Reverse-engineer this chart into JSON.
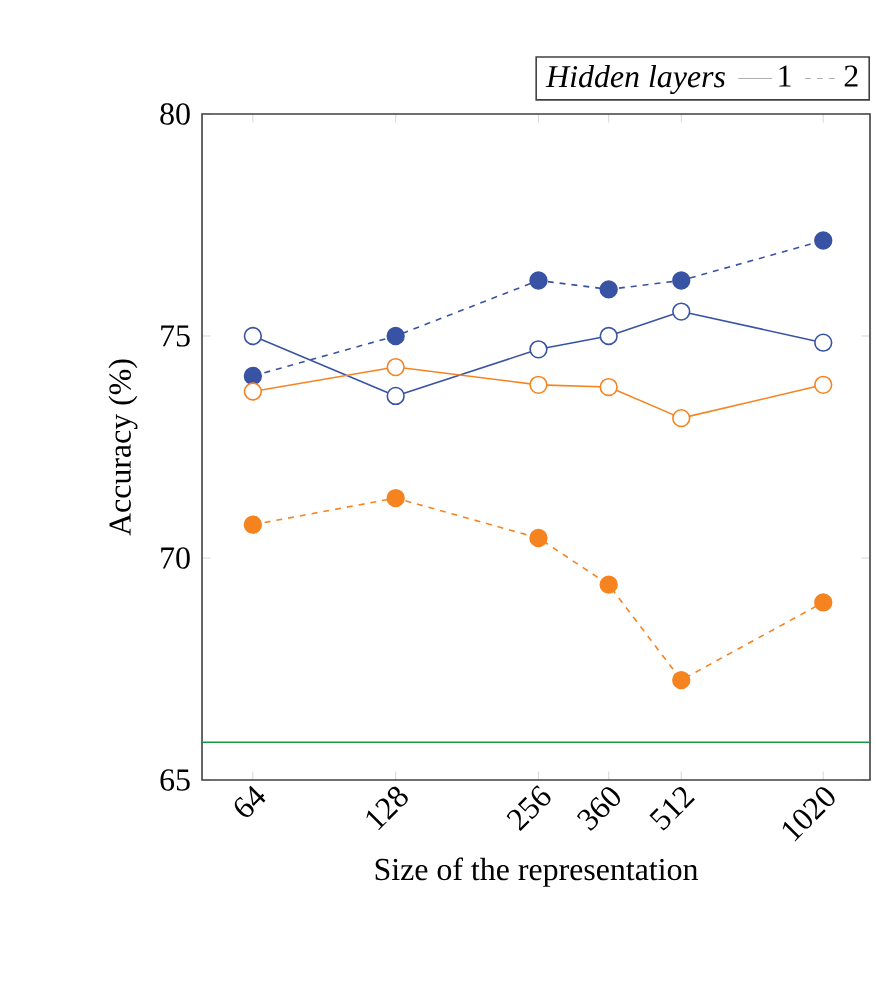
{
  "chart_data": {
    "type": "line",
    "xlabel": "Size of the representation",
    "ylabel": "Accuracy (%)",
    "legend_title": "Hidden layers",
    "x": [
      64,
      128,
      256,
      360,
      512,
      1020
    ],
    "series": [
      {
        "color": "#3953a4",
        "line_style": "solid",
        "values": [
          75.0,
          73.65,
          74.7,
          75.0,
          75.55,
          74.85
        ]
      },
      {
        "color": "#3953a4",
        "line_style": "dashed",
        "values": [
          74.1,
          75.0,
          76.25,
          76.05,
          76.25,
          77.15
        ]
      },
      {
        "color": "#f58420",
        "line_style": "solid",
        "values": [
          73.75,
          74.3,
          73.9,
          73.85,
          73.15,
          73.9
        ]
      },
      {
        "color": "#f58420",
        "line_style": "dashed",
        "values": [
          70.75,
          71.35,
          70.45,
          69.4,
          67.25,
          69.0
        ]
      },
      {
        "name": "1",
        "color": "#999999",
        "line_style": "solid",
        "values": [
          null,
          null,
          null,
          null,
          null,
          null
        ]
      },
      {
        "name": "2",
        "color": "#999999",
        "line_style": "dashed",
        "values": [
          null,
          null,
          null,
          null,
          null,
          null
        ]
      }
    ],
    "log": "x",
    "xlim": [
      50,
      1280
    ],
    "ylim": [
      65,
      80
    ],
    "xticks": [
      64,
      128,
      256,
      360,
      512,
      1020
    ],
    "yticks": [
      65,
      70,
      75,
      80
    ],
    "marker": "circle",
    "legend": "top right",
    "grid": false,
    "ref_lines": [
      {
        "axis": "y",
        "value": 65.85,
        "color": "#1a9641"
      }
    ]
  }
}
